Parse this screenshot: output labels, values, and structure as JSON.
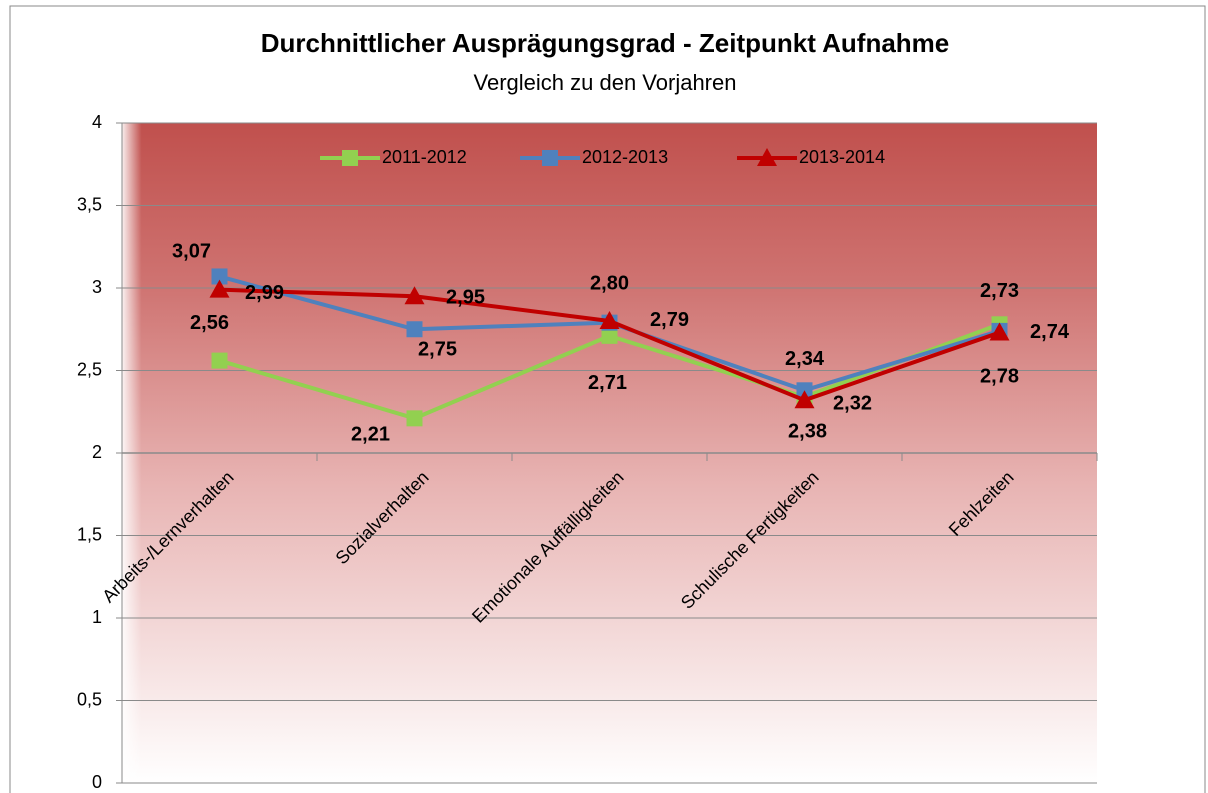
{
  "chart_data": {
    "type": "line",
    "title": "Durchnittlicher Ausprägungsgrad - Zeitpunkt Aufnahme",
    "subtitle": "Vergleich zu den Vorjahren",
    "categories": [
      "Arbeits-/Lernverhalten",
      "Sozialverhalten",
      "Emotionale Auffälligkeiten",
      "Schulische Fertigkeiten",
      "Fehlzeiten"
    ],
    "series": [
      {
        "name": "2011-2012",
        "color": "#92d050",
        "marker": "square",
        "values": [
          2.56,
          2.21,
          2.71,
          2.34,
          2.78
        ],
        "value_labels": [
          "2,56",
          "2,21",
          "2,71",
          "2,34",
          "2,78"
        ]
      },
      {
        "name": "2012-2013",
        "color": "#4f81bd",
        "marker": "square",
        "values": [
          3.07,
          2.75,
          2.79,
          2.38,
          2.74
        ],
        "value_labels": [
          "3,07",
          "2,75",
          "2,79",
          "2,38",
          "2,74"
        ]
      },
      {
        "name": "2013-2014",
        "color": "#c00000",
        "marker": "triangle",
        "values": [
          2.99,
          2.95,
          2.8,
          2.32,
          2.73
        ],
        "value_labels": [
          "2,99",
          "2,95",
          "2,80",
          "2,32",
          "2,73"
        ]
      }
    ],
    "ylim": [
      0,
      4
    ],
    "yticks": [
      0,
      {
        "value": 0.5,
        "label": "0,5"
      },
      1,
      {
        "value": 1.5,
        "label": "1,5"
      },
      2,
      {
        "value": 2.5,
        "label": "2,5"
      },
      3,
      {
        "value": 3.5,
        "label": "3,5"
      },
      4
    ],
    "x_axis_crosses": 2,
    "grid": true,
    "legend": "top"
  }
}
